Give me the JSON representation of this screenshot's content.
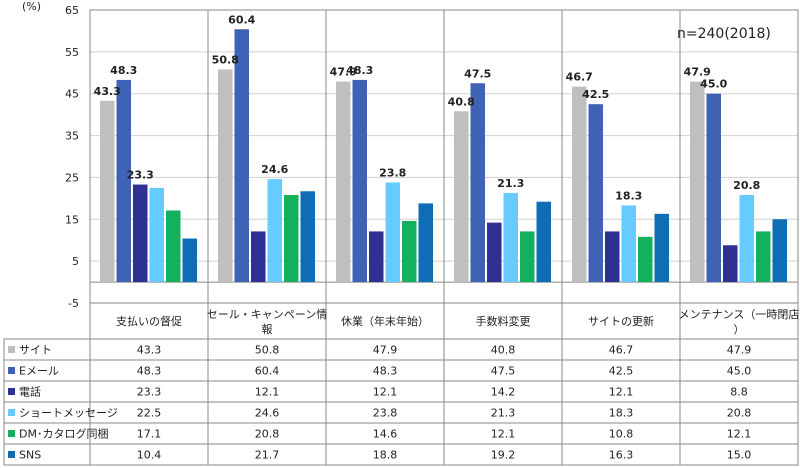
{
  "chart_data": {
    "type": "bar",
    "unit_label": "(%)",
    "note": "n=240(2018)",
    "ylim": [
      -5,
      65
    ],
    "yticks": [
      -5,
      5,
      15,
      25,
      35,
      45,
      55,
      65
    ],
    "grid": true,
    "categories": [
      "支払いの督促",
      "セール・キャンペーン情報",
      "休業（年末年始）",
      "手数料変更",
      "サイトの更新",
      "メンテナンス（一時閉店）"
    ],
    "series": [
      {
        "name": "サイト",
        "color": "#bfbfbf",
        "values": [
          43.3,
          50.8,
          47.9,
          40.8,
          46.7,
          47.9
        ],
        "display": [
          "43.3",
          "50.8",
          "47.9",
          "40.8",
          "46.7",
          "47.9"
        ]
      },
      {
        "name": "Eメール",
        "color": "#3f63b4",
        "values": [
          48.3,
          60.4,
          48.3,
          47.5,
          42.5,
          45.0
        ],
        "display": [
          "48.3",
          "60.4",
          "48.3",
          "47.5",
          "42.5",
          "45.0"
        ]
      },
      {
        "name": "電話",
        "color": "#2e3192",
        "values": [
          23.3,
          12.1,
          12.1,
          14.2,
          12.1,
          8.8
        ],
        "display": [
          "23.3",
          "12.1",
          "12.1",
          "14.2",
          "12.1",
          "8.8"
        ]
      },
      {
        "name": "ショートメッセージ",
        "color": "#66ccff",
        "values": [
          22.5,
          24.6,
          23.8,
          21.3,
          18.3,
          20.8
        ],
        "display": [
          "22.5",
          "24.6",
          "23.8",
          "21.3",
          "18.3",
          "20.8"
        ]
      },
      {
        "name": "DM･カタログ同梱",
        "color": "#13b05d",
        "values": [
          17.1,
          20.8,
          14.6,
          12.1,
          10.8,
          12.1
        ],
        "display": [
          "17.1",
          "20.8",
          "14.6",
          "12.1",
          "10.8",
          "12.1"
        ]
      },
      {
        "name": "SNS",
        "color": "#0f6db5",
        "values": [
          10.4,
          21.7,
          18.8,
          19.2,
          16.3,
          15.0
        ],
        "display": [
          "10.4",
          "21.7",
          "18.8",
          "19.2",
          "16.3",
          "15.0"
        ]
      }
    ],
    "data_labels": [
      {
        "series": 0,
        "category": 0,
        "text": "43.3"
      },
      {
        "series": 1,
        "category": 0,
        "text": "48.3"
      },
      {
        "series": 2,
        "category": 0,
        "text": "23.3"
      },
      {
        "series": 0,
        "category": 1,
        "text": "50.8"
      },
      {
        "series": 1,
        "category": 1,
        "text": "60.4"
      },
      {
        "series": 3,
        "category": 1,
        "text": "24.6"
      },
      {
        "series": 0,
        "category": 2,
        "text": "47.9"
      },
      {
        "series": 1,
        "category": 2,
        "text": "48.3"
      },
      {
        "series": 3,
        "category": 2,
        "text": "23.8"
      },
      {
        "series": 0,
        "category": 3,
        "text": "40.8"
      },
      {
        "series": 1,
        "category": 3,
        "text": "47.5"
      },
      {
        "series": 3,
        "category": 3,
        "text": "21.3"
      },
      {
        "series": 0,
        "category": 4,
        "text": "46.7"
      },
      {
        "series": 1,
        "category": 4,
        "text": "42.5"
      },
      {
        "series": 3,
        "category": 4,
        "text": "18.3"
      },
      {
        "series": 0,
        "category": 5,
        "text": "47.9"
      },
      {
        "series": 1,
        "category": 5,
        "text": "45.0"
      },
      {
        "series": 3,
        "category": 5,
        "text": "20.8"
      }
    ]
  }
}
